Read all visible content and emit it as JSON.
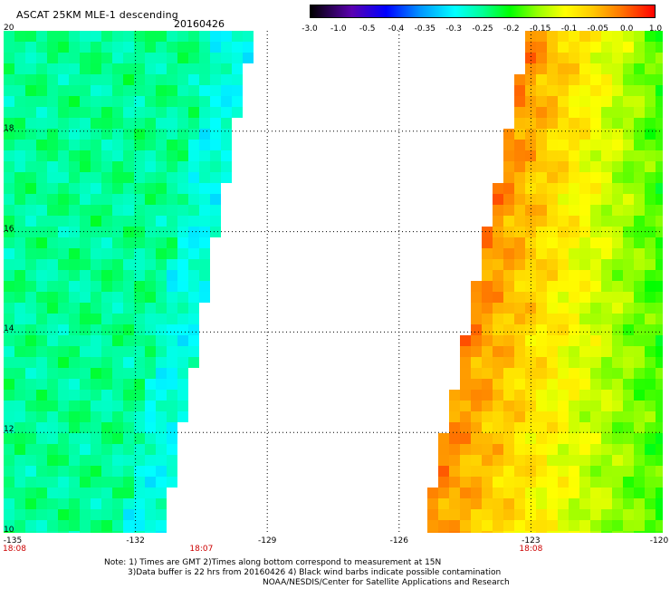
{
  "header": {
    "title": "ASCAT 25KM MLE-1 descending",
    "date": "20160426"
  },
  "colorbar": {
    "labels": [
      "-3.0",
      "-1.0",
      "-0.5",
      "-0.4",
      "-0.35",
      "-0.3",
      "-0.25",
      "-0.2",
      "-0.15",
      "-0.1",
      "-0.05",
      "0.0",
      "1.0"
    ],
    "colors": [
      "#000000",
      "#7800ff",
      "#0000ff",
      "#0096ff",
      "#00ffff",
      "#00ff96",
      "#00ff00",
      "#96ff00",
      "#ffff00",
      "#ffc800",
      "#ff9600",
      "#ff6400",
      "#ff0000"
    ]
  },
  "map": {
    "lat_labels": [
      "20",
      "18",
      "16",
      "14",
      "12",
      "10"
    ],
    "lon_labels": [
      "-135",
      "-132",
      "-129",
      "-126",
      "-123",
      "-120"
    ],
    "lon_range": [
      -135,
      -120
    ],
    "lat_range": [
      10,
      20
    ],
    "time_labels": [
      {
        "text": "18:08",
        "lon": -135
      },
      {
        "text": "18:07",
        "lon": -130.5
      },
      {
        "text": "18:08",
        "lon": -123
      }
    ]
  },
  "notes": {
    "line1": "Note: 1) Times are GMT 2)Times along bottom correspond to measurement at 15N",
    "line2": "3)Data buffer is 22 hrs from 20160426 4) Black wind barbs indicate possible contamination",
    "line3": "NOAA/NESDIS/Center for Satellite Applications and Research"
  }
}
